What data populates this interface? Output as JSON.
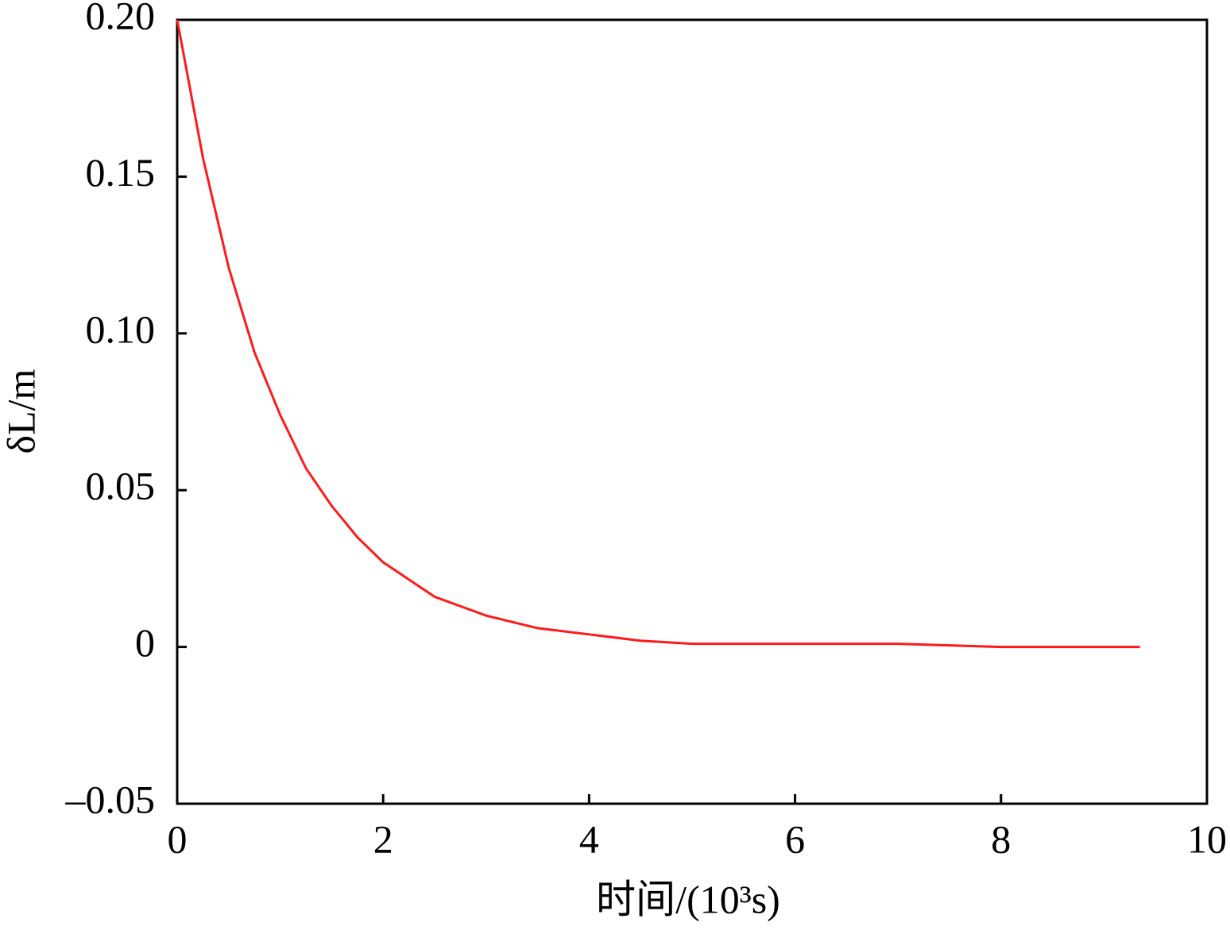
{
  "chart_data": {
    "type": "line",
    "xlabel": "时间/(10³s)",
    "ylabel": "δL/m",
    "x": [
      0,
      0.25,
      0.5,
      0.75,
      1,
      1.25,
      1.5,
      1.75,
      2,
      2.5,
      3,
      3.5,
      4,
      4.5,
      5,
      6,
      7,
      8,
      9.35
    ],
    "series": [
      {
        "name": "δL",
        "color": "#ff1a1a",
        "values": [
          0.2,
          0.156,
          0.121,
          0.094,
          0.074,
          0.057,
          0.045,
          0.035,
          0.027,
          0.016,
          0.01,
          0.006,
          0.004,
          0.002,
          0.001,
          0.001,
          0.001,
          0,
          0
        ]
      }
    ],
    "xlim": [
      0,
      10
    ],
    "xticks": [
      0,
      2,
      4,
      6,
      8,
      10
    ],
    "ylim": [
      -0.05,
      0.2
    ],
    "yticks": [
      {
        "value": -0.05,
        "label": "–0.05"
      },
      0,
      0.05,
      {
        "value": 0.1,
        "label": "0.10"
      },
      0.15,
      {
        "value": 0.2,
        "label": "0.20"
      }
    ],
    "grid": false
  }
}
